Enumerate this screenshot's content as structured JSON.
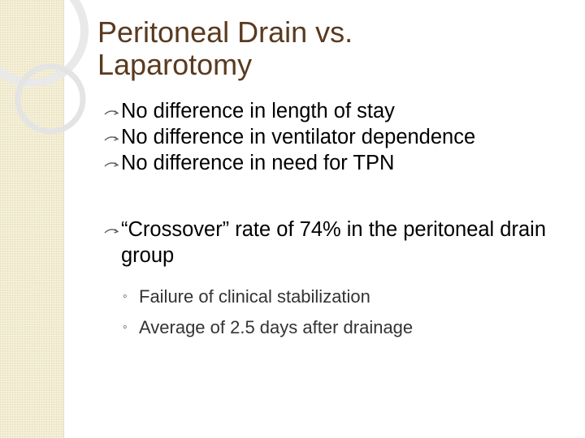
{
  "slide": {
    "title_line1": "Peritoneal Drain vs.",
    "title_line2": "Laparotomy",
    "bullets": [
      {
        "text": "No difference in length of stay"
      },
      {
        "text": "No difference in ventilator dependence"
      },
      {
        "text": "No difference in need for TPN"
      },
      {
        "text": "“Crossover” rate of 74% in the peritoneal drain group",
        "sub_items": [
          {
            "text": "Failure of clinical stabilization"
          },
          {
            "text": "Average of 2.5 days after drainage"
          }
        ]
      }
    ],
    "bullet_icon": "curved-arrow-bullet-icon",
    "sub_bullet_icon": "hollow-circle-bullet-icon"
  },
  "theme": {
    "title_color": "#5a3a1f",
    "panel_color": "#f2ecd0",
    "ring_color": "#e6e6e6",
    "body_text_color": "#000000",
    "sub_text_color": "#333333"
  }
}
